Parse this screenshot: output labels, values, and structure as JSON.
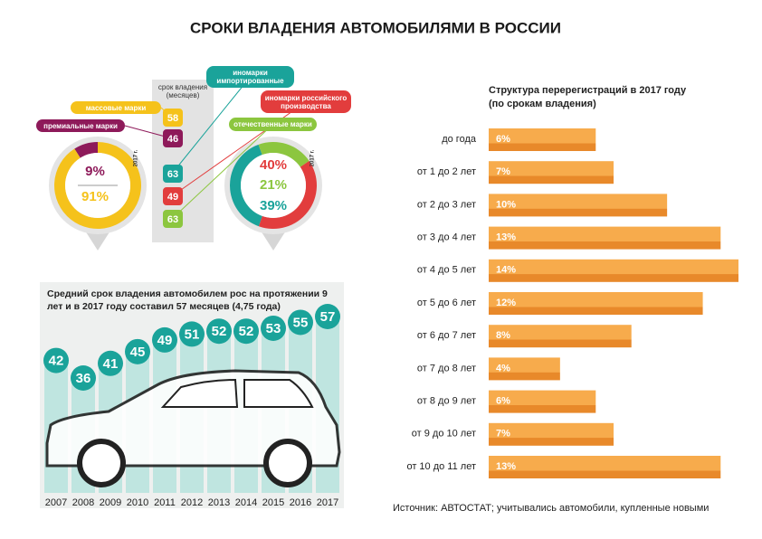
{
  "title": "СРОКИ ВЛАДЕНИЯ АВТОМОБИЛЯМИ В РОССИИ",
  "ownership_header": "срок владения (месяцев)",
  "chart_data": [
    {
      "type": "donut",
      "year_label": "2017 г.",
      "categories": [
        "премиальные марки",
        "массовые марки"
      ],
      "values": [
        9,
        91
      ],
      "value_labels": [
        "9%",
        "91%"
      ],
      "colors": [
        "#8e1a5a",
        "#f5c21b"
      ],
      "months": [
        46,
        58
      ]
    },
    {
      "type": "donut",
      "year_label": "2017 г.",
      "categories": [
        "иномарки импортированные",
        "иномарки российского производства",
        "отечественные марки"
      ],
      "values": [
        39,
        40,
        21
      ],
      "value_labels": [
        "39%",
        "40%",
        "21%"
      ],
      "colors": [
        "#1aa39a",
        "#e23d3d",
        "#8cc63f"
      ],
      "months": [
        63,
        49,
        63
      ]
    },
    {
      "type": "column",
      "title": "Средний срок владения автомобилем рос на протяжении 9 лет и в 2017 году составил 57 месяцев (4,75 года)",
      "categories": [
        "2007",
        "2008",
        "2009",
        "2010",
        "2011",
        "2012",
        "2013",
        "2014",
        "2015",
        "2016",
        "2017"
      ],
      "values": [
        42,
        36,
        41,
        45,
        49,
        51,
        52,
        52,
        53,
        55,
        57
      ],
      "color": "#bfe5e0",
      "marker_color": "#1aa39a"
    },
    {
      "type": "hbar",
      "title": "Структура перерегистраций в 2017 году",
      "subtitle": "(по срокам владения)",
      "categories": [
        "до года",
        "от 1 до 2 лет",
        "от 2 до 3 лет",
        "от 3 до 4 лет",
        "от 4 до 5 лет",
        "от 5 до 6 лет",
        "от 6 до 7 лет",
        "от 7 до 8 лет",
        "от 8 до 9 лет",
        "от 9 до 10 лет",
        "от 10 до 11 лет"
      ],
      "values": [
        6,
        7,
        10,
        13,
        14,
        12,
        8,
        4,
        6,
        7,
        13
      ],
      "value_labels": [
        "6%",
        "7%",
        "10%",
        "13%",
        "14%",
        "12%",
        "8%",
        "4%",
        "6%",
        "7%",
        "13%"
      ],
      "color": "#f5a23f"
    }
  ],
  "source": "Источник: АВТОСТАТ; учитывались автомобили, купленные новыми"
}
